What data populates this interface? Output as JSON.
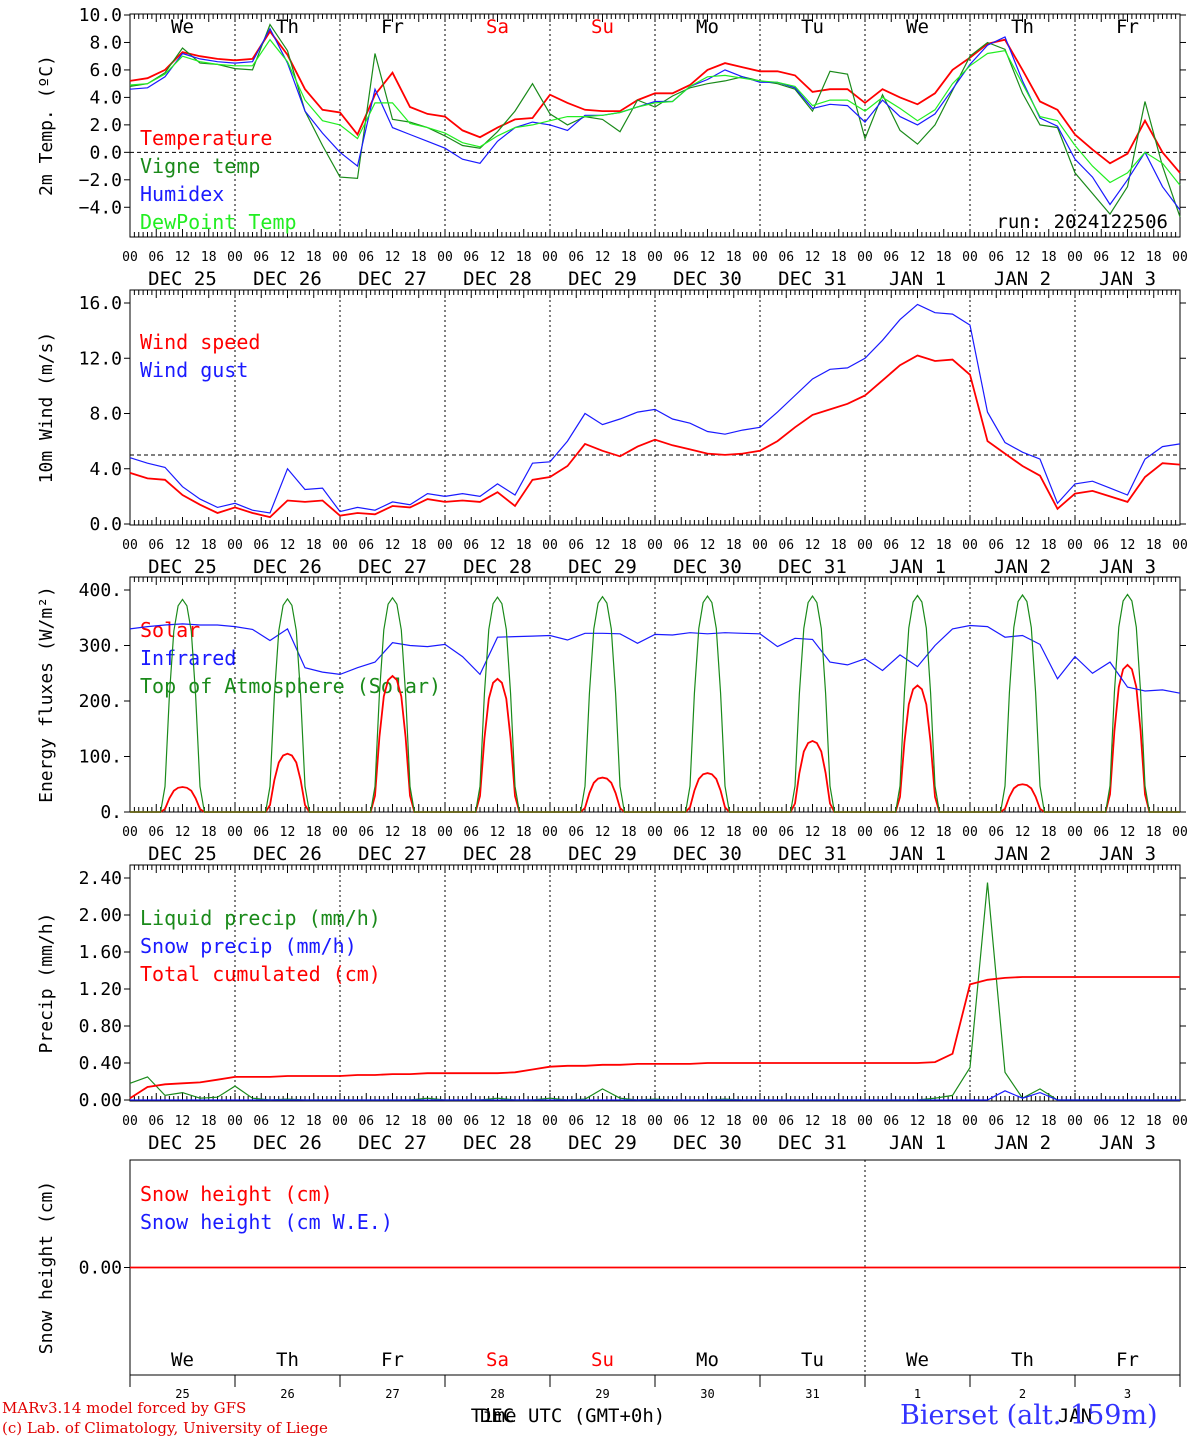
{
  "colors": {
    "red": "#ff0000",
    "green": "#1a8a1a",
    "blue": "#1a1aff",
    "lightgreen": "#22ee22",
    "grid": "#000000"
  },
  "chart_data": [
    {
      "type": "line",
      "ylabel": "2m Temp. (ºC)",
      "ylim": [
        -5,
        10
      ],
      "yticks": [
        "10.0",
        "8.0",
        "6.0",
        "4.0",
        "2.0",
        "0.0",
        "−2.0",
        "−4.0"
      ],
      "ytick_values": [
        10,
        8,
        6,
        4,
        2,
        0,
        -2,
        -4
      ],
      "reference_line": 0,
      "annotation": "run: 2024122506",
      "weekdays": [
        "We",
        "Th",
        "Fr",
        "Sa",
        "Su",
        "Mo",
        "Tu",
        "We",
        "Th",
        "Fr"
      ],
      "weekday_colors": [
        "#000000",
        "#000000",
        "#000000",
        "#ff0000",
        "#ff0000",
        "#000000",
        "#000000",
        "#000000",
        "#000000",
        "#000000"
      ],
      "series": [
        {
          "name": "Temperature",
          "color": "#ff0000",
          "values": [
            5.2,
            5.4,
            6.0,
            7.3,
            7.0,
            6.8,
            6.7,
            6.8,
            8.8,
            7.1,
            4.6,
            3.1,
            2.9,
            1.3,
            4.2,
            5.8,
            3.3,
            2.8,
            2.6,
            1.6,
            1.1,
            1.8,
            2.4,
            2.5,
            4.2,
            3.6,
            3.1,
            3.0,
            3.0,
            3.8,
            4.3,
            4.3,
            4.9,
            6.0,
            6.5,
            6.2,
            5.9,
            5.9,
            5.6,
            4.4,
            4.6,
            4.6,
            3.6,
            4.6,
            4.0,
            3.5,
            4.3,
            6.0,
            6.9,
            7.9,
            8.2,
            6.0,
            3.7,
            3.1,
            1.3,
            0.2,
            -0.8,
            -0.1,
            2.3,
            0.0,
            -1.5
          ]
        },
        {
          "name": "Vigne temp",
          "color": "#1a8a1a",
          "values": [
            4.8,
            5.0,
            5.8,
            7.6,
            6.5,
            6.4,
            6.1,
            6.0,
            9.3,
            7.4,
            3.0,
            0.5,
            -1.8,
            -1.9,
            7.2,
            2.4,
            2.2,
            1.8,
            1.2,
            0.5,
            0.3,
            1.5,
            3.0,
            5.0,
            2.8,
            2.0,
            2.6,
            2.4,
            1.5,
            3.8,
            3.3,
            4.1,
            4.7,
            5.0,
            5.2,
            5.5,
            5.2,
            5.0,
            4.6,
            3.0,
            5.9,
            5.7,
            1.0,
            4.2,
            1.6,
            0.6,
            2.0,
            4.5,
            7.0,
            8.0,
            7.5,
            4.3,
            2.0,
            1.8,
            -1.5,
            -3.0,
            -4.5,
            -2.5,
            3.7,
            -1.0,
            -4.7
          ]
        },
        {
          "name": "Humidex",
          "color": "#1a1aff",
          "values": [
            4.6,
            4.7,
            5.5,
            7.2,
            6.8,
            6.6,
            6.5,
            6.6,
            9.0,
            6.5,
            3.0,
            1.4,
            0.0,
            -1.0,
            4.6,
            1.8,
            1.3,
            0.8,
            0.3,
            -0.5,
            -0.8,
            0.8,
            1.8,
            2.2,
            2.0,
            1.6,
            2.7,
            2.7,
            2.9,
            3.3,
            3.7,
            3.7,
            4.8,
            5.3,
            6.0,
            5.5,
            5.1,
            5.1,
            4.7,
            3.2,
            3.5,
            3.4,
            2.2,
            3.8,
            2.6,
            2.0,
            2.8,
            4.6,
            6.4,
            7.8,
            8.4,
            5.2,
            2.5,
            1.9,
            -0.5,
            -1.8,
            -3.8,
            -2.0,
            0.0,
            -2.5,
            -4.2
          ]
        },
        {
          "name": "DewPoint Temp",
          "color": "#22ee22",
          "values": [
            4.9,
            5.0,
            5.7,
            7.0,
            6.6,
            6.4,
            6.3,
            6.3,
            8.2,
            6.6,
            3.8,
            2.3,
            2.0,
            1.0,
            3.6,
            3.6,
            2.1,
            1.8,
            1.4,
            0.7,
            0.4,
            1.2,
            1.8,
            2.0,
            2.3,
            2.6,
            2.6,
            2.7,
            2.9,
            3.3,
            3.6,
            3.7,
            4.8,
            5.5,
            5.6,
            5.4,
            5.2,
            5.1,
            4.8,
            3.4,
            3.8,
            3.8,
            3.0,
            4.0,
            3.2,
            2.3,
            3.1,
            5.0,
            6.3,
            7.2,
            7.4,
            5.0,
            2.6,
            2.3,
            0.5,
            -1.0,
            -2.2,
            -1.5,
            0.0,
            -0.8,
            -2.4
          ]
        }
      ]
    },
    {
      "type": "line",
      "ylabel": "10m Wind (m/s)",
      "ylim": [
        0,
        16
      ],
      "yticks": [
        "16.0",
        "12.0",
        "8.0",
        "4.0",
        "0.0"
      ],
      "ytick_values": [
        16,
        12,
        8,
        4,
        0
      ],
      "reference_line": 5,
      "series": [
        {
          "name": "Wind speed",
          "color": "#ff0000",
          "values": [
            3.7,
            3.3,
            3.2,
            2.1,
            1.4,
            0.8,
            1.2,
            0.8,
            0.5,
            1.7,
            1.6,
            1.7,
            0.6,
            0.8,
            0.7,
            1.3,
            1.2,
            1.8,
            1.6,
            1.7,
            1.6,
            2.3,
            1.3,
            3.2,
            3.4,
            4.2,
            5.8,
            5.3,
            4.9,
            5.6,
            6.1,
            5.7,
            5.4,
            5.1,
            5.0,
            5.1,
            5.3,
            6.0,
            7.0,
            7.9,
            8.3,
            8.7,
            9.3,
            10.4,
            11.5,
            12.2,
            11.8,
            11.9,
            10.8,
            6.0,
            5.1,
            4.2,
            3.5,
            1.1,
            2.2,
            2.4,
            2.0,
            1.6,
            3.4,
            4.4,
            4.3
          ]
        },
        {
          "name": "Wind gust",
          "color": "#1a1aff",
          "values": [
            4.8,
            4.4,
            4.1,
            2.7,
            1.8,
            1.2,
            1.5,
            1.0,
            0.8,
            4.0,
            2.5,
            2.6,
            0.9,
            1.2,
            1.0,
            1.6,
            1.4,
            2.2,
            2.0,
            2.2,
            2.0,
            2.9,
            2.1,
            4.4,
            4.5,
            6.0,
            8.0,
            7.2,
            7.6,
            8.1,
            8.3,
            7.6,
            7.3,
            6.7,
            6.5,
            6.8,
            7.0,
            8.1,
            9.3,
            10.5,
            11.2,
            11.3,
            12.0,
            13.3,
            14.8,
            15.9,
            15.3,
            15.2,
            14.4,
            8.1,
            5.9,
            5.2,
            4.7,
            1.5,
            2.9,
            3.1,
            2.6,
            2.1,
            4.7,
            5.6,
            5.8
          ]
        }
      ]
    },
    {
      "type": "line",
      "ylabel": "Energy fluxes (W/m²)",
      "ylim": [
        0,
        400
      ],
      "yticks": [
        "400.",
        "300.",
        "200.",
        "100.",
        "0."
      ],
      "ytick_values": [
        400,
        300,
        200,
        100,
        0
      ],
      "series": [
        {
          "name": "Solar",
          "color": "#ff0000",
          "peaks": [
            45,
            105,
            245,
            240,
            62,
            70,
            128,
            228,
            50,
            265
          ]
        },
        {
          "name": "Infrared",
          "color": "#1a1aff",
          "values": [
            330,
            334,
            337,
            339,
            337,
            337,
            334,
            329,
            309,
            330,
            260,
            252,
            248,
            260,
            270,
            305,
            300,
            298,
            302,
            280,
            248,
            315,
            316,
            317,
            318,
            310,
            322,
            322,
            321,
            304,
            320,
            319,
            323,
            321,
            323,
            322,
            321,
            298,
            313,
            311,
            270,
            265,
            276,
            255,
            283,
            262,
            300,
            330,
            336,
            334,
            315,
            318,
            302,
            240,
            280,
            250,
            270,
            225,
            218,
            220,
            214
          ]
        },
        {
          "name": "Top of Atmosphere (Solar)",
          "color": "#1a8a1a",
          "peaks": [
            383,
            384,
            386,
            387,
            388,
            389,
            389,
            390,
            391,
            392
          ]
        }
      ]
    },
    {
      "type": "line",
      "ylabel": "Precip (mm/h)",
      "ylim": [
        0,
        2.4
      ],
      "yticks": [
        "2.40",
        "2.00",
        "1.60",
        "1.20",
        "0.80",
        "0.40",
        "0.00"
      ],
      "ytick_values": [
        2.4,
        2.0,
        1.6,
        1.2,
        0.8,
        0.4,
        0.0
      ],
      "series": [
        {
          "name": "Liquid precip (mm/h)",
          "color": "#1a8a1a",
          "values": [
            0.18,
            0.25,
            0.05,
            0.08,
            0.02,
            0.03,
            0.15,
            0.02,
            0,
            0.01,
            0,
            0,
            0,
            0,
            0,
            0,
            0,
            0.02,
            0,
            0,
            0,
            0.02,
            0,
            0,
            0.02,
            0,
            0.01,
            0.12,
            0.02,
            0,
            0.01,
            0,
            0,
            0,
            0.01,
            0,
            0,
            0,
            0,
            0,
            0,
            0,
            0,
            0,
            0,
            0,
            0.02,
            0.05,
            0.35,
            2.35,
            0.3,
            0.02,
            0.12,
            0,
            0,
            0,
            0,
            0,
            0,
            0,
            0
          ]
        },
        {
          "name": "Snow precip (mm/h)",
          "color": "#1a1aff",
          "values": [
            0,
            0,
            0,
            0,
            0,
            0,
            0,
            0,
            0,
            0,
            0,
            0,
            0,
            0,
            0,
            0,
            0,
            0,
            0,
            0,
            0,
            0,
            0,
            0,
            0,
            0,
            0,
            0,
            0,
            0,
            0,
            0,
            0,
            0,
            0,
            0,
            0,
            0,
            0,
            0,
            0,
            0,
            0,
            0,
            0,
            0,
            0,
            0,
            0,
            0,
            0.1,
            0.02,
            0.08,
            0,
            0,
            0,
            0,
            0,
            0,
            0,
            0
          ]
        },
        {
          "name": "Total cumulated (cm)",
          "color": "#ff0000",
          "values": [
            0.02,
            0.14,
            0.17,
            0.18,
            0.19,
            0.22,
            0.25,
            0.25,
            0.25,
            0.26,
            0.26,
            0.26,
            0.26,
            0.27,
            0.27,
            0.28,
            0.28,
            0.29,
            0.29,
            0.29,
            0.29,
            0.29,
            0.3,
            0.33,
            0.36,
            0.37,
            0.37,
            0.38,
            0.38,
            0.39,
            0.39,
            0.39,
            0.39,
            0.4,
            0.4,
            0.4,
            0.4,
            0.4,
            0.4,
            0.4,
            0.4,
            0.4,
            0.4,
            0.4,
            0.4,
            0.4,
            0.41,
            0.5,
            1.25,
            1.3,
            1.32,
            1.33,
            1.33,
            1.33,
            1.33,
            1.33,
            1.33,
            1.33,
            1.33,
            1.33,
            1.33
          ]
        }
      ]
    },
    {
      "type": "line",
      "ylabel": "Snow height (cm)",
      "yticks": [
        "0.00"
      ],
      "ytick_values": [
        0
      ],
      "ylim": [
        -1,
        1
      ],
      "series": [
        {
          "name": "Snow height (cm)",
          "color": "#ff0000",
          "values": [
            0,
            0
          ]
        },
        {
          "name": "Snow height (cm W.E.)",
          "color": "#1a1aff",
          "values": []
        }
      ],
      "weekdays": [
        "We",
        "Th",
        "Fr",
        "Sa",
        "Su",
        "Mo",
        "Tu",
        "We",
        "Th",
        "Fr"
      ],
      "weekday_colors": [
        "#000000",
        "#000000",
        "#000000",
        "#ff0000",
        "#ff0000",
        "#000000",
        "#000000",
        "#000000",
        "#000000",
        "#000000"
      ],
      "daynums": [
        "25",
        "26",
        "27",
        "28",
        "29",
        "30",
        "31",
        "1",
        "2",
        "3"
      ],
      "month_labels": [
        "DEC",
        "JAN"
      ],
      "xlabel": "Time UTC (GMT+0h)"
    }
  ],
  "x_axis": {
    "hour_ticks": [
      "00",
      "06",
      "12",
      "18"
    ],
    "end_tick": "00",
    "day_labels": [
      "DEC 25",
      "DEC 26",
      "DEC 27",
      "DEC 28",
      "DEC 29",
      "DEC 30",
      "DEC 31",
      "JAN  1",
      "JAN  2",
      "JAN  3"
    ]
  },
  "footer": {
    "credit_line1": "MARv3.14 model forced by GFS",
    "credit_line2": "(c) Lab. of Climatology, University of Liege",
    "station": "Bierset (alt. 159m)"
  }
}
